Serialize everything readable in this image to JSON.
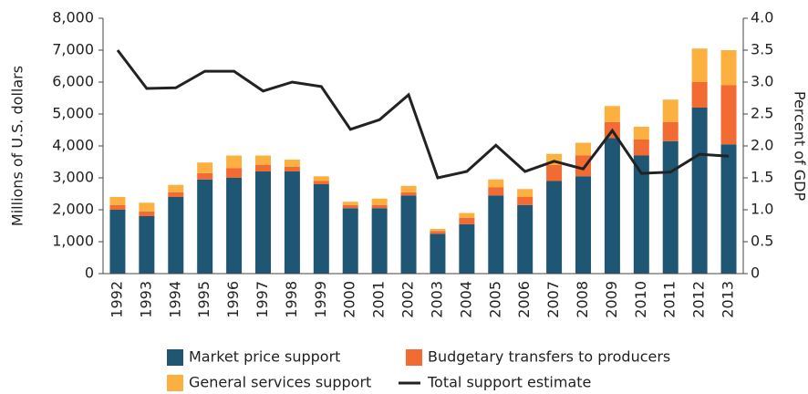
{
  "chart_data": {
    "type": "bar",
    "categories": [
      "1992",
      "1993",
      "1994",
      "1995",
      "1996",
      "1997",
      "1998",
      "1999",
      "2000",
      "2001",
      "2002",
      "2003",
      "2004",
      "2005",
      "2006",
      "2007",
      "2008",
      "2009",
      "2010",
      "2011",
      "2012",
      "2013"
    ],
    "series": [
      {
        "name": "Market price support",
        "color": "#1f5673",
        "values": [
          2000,
          1800,
          2400,
          2950,
          3000,
          3200,
          3200,
          2800,
          2050,
          2050,
          2450,
          1250,
          1550,
          2450,
          2150,
          2900,
          3050,
          4250,
          3700,
          4150,
          5200,
          4050
        ]
      },
      {
        "name": "Budgetary transfers to producers",
        "color": "#f26b32",
        "values": [
          150,
          150,
          150,
          200,
          300,
          200,
          150,
          100,
          100,
          100,
          100,
          80,
          200,
          250,
          250,
          500,
          650,
          500,
          500,
          600,
          800,
          1850
        ]
      },
      {
        "name": "General services support",
        "color": "#fbb040",
        "values": [
          250,
          270,
          230,
          330,
          400,
          300,
          220,
          150,
          100,
          200,
          200,
          70,
          150,
          250,
          250,
          350,
          400,
          500,
          400,
          700,
          1050,
          1100
        ]
      },
      {
        "name": "Total support estimate",
        "color": "#222222",
        "axis": "y2",
        "values": [
          3.5,
          2.9,
          2.91,
          3.17,
          3.17,
          2.86,
          3.0,
          2.93,
          2.26,
          2.41,
          2.8,
          1.5,
          1.6,
          2.01,
          1.6,
          1.76,
          1.64,
          2.24,
          1.57,
          1.59,
          1.87,
          1.84
        ]
      }
    ],
    "ylabel": "Millions of U.S. dollars",
    "y2label": "Percent of GDP",
    "ylim": [
      0,
      8000
    ],
    "yticks": [
      0,
      {
        "value": 1000,
        "label": "1,000"
      },
      {
        "value": 2000,
        "label": "2,000"
      },
      {
        "value": 3000,
        "label": "3,000"
      },
      {
        "value": 4000,
        "label": "4,000"
      },
      {
        "value": 5000,
        "label": "5,000"
      },
      {
        "value": 6000,
        "label": "6,000"
      },
      {
        "value": 7000,
        "label": "7,000"
      },
      {
        "value": 8000,
        "label": "8,000"
      }
    ],
    "y2lim": [
      0,
      4
    ],
    "y2ticks": [
      0,
      0.5,
      {
        "value": 1,
        "label": "1.0"
      },
      1.5,
      {
        "value": 2,
        "label": "2.0"
      },
      2.5,
      {
        "value": 3,
        "label": "3.0"
      },
      3.5,
      {
        "value": 4,
        "label": "4.0"
      }
    ],
    "stacked": true,
    "grid": false
  }
}
